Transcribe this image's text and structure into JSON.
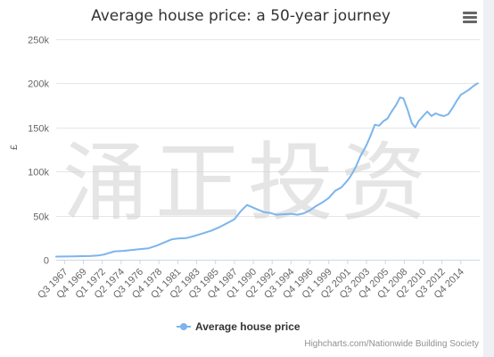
{
  "chart_data": {
    "type": "line",
    "title": "Average house price: a 50-year journey",
    "ylabel": "£",
    "ylim": [
      0,
      250000
    ],
    "yticks": [
      {
        "value": 0,
        "label": "0"
      },
      {
        "value": 50000,
        "label": "50k"
      },
      {
        "value": 100000,
        "label": "100k"
      },
      {
        "value": 150000,
        "label": "150k"
      },
      {
        "value": 200000,
        "label": "200k"
      },
      {
        "value": 250000,
        "label": "250k"
      }
    ],
    "xlim": [
      1966.5,
      2017.0
    ],
    "xticks": [
      {
        "value": 1967.5,
        "label": "Q3 1967"
      },
      {
        "value": 1969.75,
        "label": "Q4 1969"
      },
      {
        "value": 1972.0,
        "label": "Q1 1972"
      },
      {
        "value": 1974.25,
        "label": "Q2 1974"
      },
      {
        "value": 1976.5,
        "label": "Q3 1976"
      },
      {
        "value": 1978.75,
        "label": "Q4 1978"
      },
      {
        "value": 1981.0,
        "label": "Q1 1981"
      },
      {
        "value": 1983.25,
        "label": "Q2 1983"
      },
      {
        "value": 1985.5,
        "label": "Q3 1985"
      },
      {
        "value": 1987.75,
        "label": "Q4 1987"
      },
      {
        "value": 1990.0,
        "label": "Q1 1990"
      },
      {
        "value": 1992.25,
        "label": "Q2 1992"
      },
      {
        "value": 1994.5,
        "label": "Q3 1994"
      },
      {
        "value": 1996.75,
        "label": "Q4 1996"
      },
      {
        "value": 1999.0,
        "label": "Q1 1999"
      },
      {
        "value": 2001.25,
        "label": "Q2 2001"
      },
      {
        "value": 2003.5,
        "label": "Q3 2003"
      },
      {
        "value": 2005.75,
        "label": "Q4 2005"
      },
      {
        "value": 2008.0,
        "label": "Q1 2008"
      },
      {
        "value": 2010.25,
        "label": "Q2 2010"
      },
      {
        "value": 2012.5,
        "label": "Q3 2012"
      },
      {
        "value": 2014.75,
        "label": "Q4 2014"
      }
    ],
    "grid": true,
    "legend_position": "bottom-center",
    "series": [
      {
        "name": "Average house price",
        "color": "#7cb5ec",
        "points": [
          [
            1966.5,
            3500
          ],
          [
            1967.5,
            3600
          ],
          [
            1968.5,
            3800
          ],
          [
            1969.5,
            4000
          ],
          [
            1970.5,
            4200
          ],
          [
            1971.5,
            4800
          ],
          [
            1972.25,
            6000
          ],
          [
            1972.75,
            7500
          ],
          [
            1973.5,
            9500
          ],
          [
            1974.5,
            10000
          ],
          [
            1975.5,
            11000
          ],
          [
            1976.5,
            12000
          ],
          [
            1977.5,
            13000
          ],
          [
            1978.5,
            16000
          ],
          [
            1979.5,
            20000
          ],
          [
            1980.25,
            23000
          ],
          [
            1981.0,
            24000
          ],
          [
            1982.0,
            24500
          ],
          [
            1983.0,
            27000
          ],
          [
            1984.0,
            30000
          ],
          [
            1985.0,
            33000
          ],
          [
            1986.0,
            37000
          ],
          [
            1987.0,
            42000
          ],
          [
            1987.75,
            46000
          ],
          [
            1988.5,
            55000
          ],
          [
            1989.25,
            62000
          ],
          [
            1989.75,
            60000
          ],
          [
            1990.5,
            57000
          ],
          [
            1991.25,
            54000
          ],
          [
            1992.0,
            53000
          ],
          [
            1992.75,
            51000
          ],
          [
            1993.5,
            51500
          ],
          [
            1994.5,
            52000
          ],
          [
            1995.25,
            51000
          ],
          [
            1996.0,
            52500
          ],
          [
            1996.75,
            56000
          ],
          [
            1997.5,
            61000
          ],
          [
            1998.25,
            65000
          ],
          [
            1999.0,
            70000
          ],
          [
            1999.75,
            78000
          ],
          [
            2000.5,
            82000
          ],
          [
            2001.25,
            90000
          ],
          [
            2001.75,
            97000
          ],
          [
            2002.25,
            106000
          ],
          [
            2002.75,
            117000
          ],
          [
            2003.5,
            130000
          ],
          [
            2004.0,
            141000
          ],
          [
            2004.5,
            153000
          ],
          [
            2005.0,
            152000
          ],
          [
            2005.5,
            157000
          ],
          [
            2006.0,
            160000
          ],
          [
            2006.5,
            168000
          ],
          [
            2007.0,
            175000
          ],
          [
            2007.5,
            184000
          ],
          [
            2007.9,
            183000
          ],
          [
            2008.4,
            170000
          ],
          [
            2008.9,
            155000
          ],
          [
            2009.3,
            150000
          ],
          [
            2009.7,
            157000
          ],
          [
            2010.25,
            163000
          ],
          [
            2010.75,
            168000
          ],
          [
            2011.25,
            163000
          ],
          [
            2011.75,
            166000
          ],
          [
            2012.25,
            164000
          ],
          [
            2012.75,
            163000
          ],
          [
            2013.25,
            165000
          ],
          [
            2013.75,
            172000
          ],
          [
            2014.25,
            180000
          ],
          [
            2014.75,
            187000
          ],
          [
            2015.25,
            190000
          ],
          [
            2015.75,
            193000
          ],
          [
            2016.25,
            197000
          ],
          [
            2016.75,
            200000
          ]
        ]
      }
    ]
  },
  "menu": {
    "icon": "hamburger-menu-icon"
  },
  "watermark": {
    "text": "涌正投资"
  },
  "credits": {
    "text": "Highcharts.com/Nationwide Building Society"
  }
}
